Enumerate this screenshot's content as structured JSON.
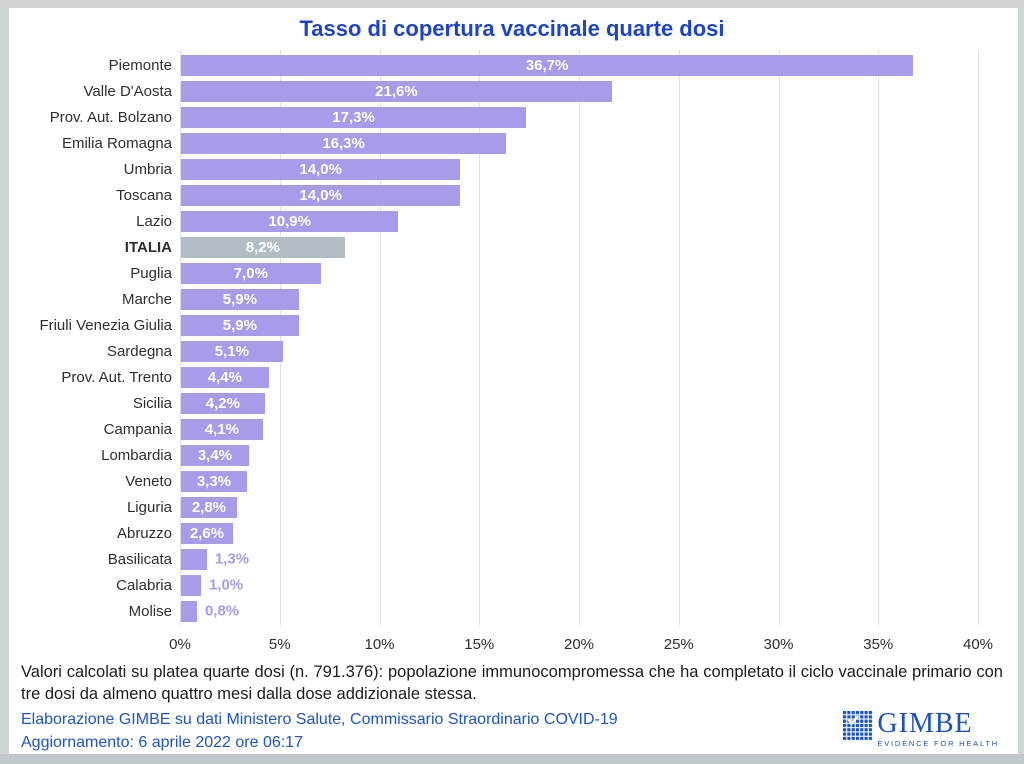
{
  "title": "Tasso di copertura vaccinale quarte dosi",
  "chart_data": {
    "type": "bar",
    "orientation": "horizontal",
    "title": "Tasso di copertura vaccinale quarte dosi",
    "xlabel": "",
    "ylabel": "",
    "xlim": [
      0,
      40
    ],
    "x_ticks": [
      "0%",
      "5%",
      "10%",
      "15%",
      "20%",
      "25%",
      "30%",
      "35%",
      "40%"
    ],
    "grid": "vertical-only",
    "legend": "none",
    "bar_color": "#a79bea",
    "highlight_color": "#b4bcc3",
    "value_label_inside_color": "#ffffff",
    "value_label_outside_color": "#a79bea",
    "items": [
      {
        "label": "Piemonte",
        "value": 36.7,
        "display": "36,7%"
      },
      {
        "label": "Valle D'Aosta",
        "value": 21.6,
        "display": "21,6%"
      },
      {
        "label": "Prov. Aut. Bolzano",
        "value": 17.3,
        "display": "17,3%"
      },
      {
        "label": "Emilia Romagna",
        "value": 16.3,
        "display": "16,3%"
      },
      {
        "label": "Umbria",
        "value": 14.0,
        "display": "14,0%"
      },
      {
        "label": "Toscana",
        "value": 14.0,
        "display": "14,0%"
      },
      {
        "label": "Lazio",
        "value": 10.9,
        "display": "10,9%"
      },
      {
        "label": "ITALIA",
        "value": 8.2,
        "display": "8,2%",
        "highlight": true
      },
      {
        "label": "Puglia",
        "value": 7.0,
        "display": "7,0%"
      },
      {
        "label": "Marche",
        "value": 5.9,
        "display": "5,9%"
      },
      {
        "label": "Friuli Venezia Giulia",
        "value": 5.9,
        "display": "5,9%"
      },
      {
        "label": "Sardegna",
        "value": 5.1,
        "display": "5,1%"
      },
      {
        "label": "Prov. Aut. Trento",
        "value": 4.4,
        "display": "4,4%"
      },
      {
        "label": "Sicilia",
        "value": 4.2,
        "display": "4,2%"
      },
      {
        "label": "Campania",
        "value": 4.1,
        "display": "4,1%"
      },
      {
        "label": "Lombardia",
        "value": 3.4,
        "display": "3,4%"
      },
      {
        "label": "Veneto",
        "value": 3.3,
        "display": "3,3%"
      },
      {
        "label": "Liguria",
        "value": 2.8,
        "display": "2,8%"
      },
      {
        "label": "Abruzzo",
        "value": 2.6,
        "display": "2,6%"
      },
      {
        "label": "Basilicata",
        "value": 1.3,
        "display": "1,3%",
        "label_outside": true
      },
      {
        "label": "Calabria",
        "value": 1.0,
        "display": "1,0%",
        "label_outside": true
      },
      {
        "label": "Molise",
        "value": 0.8,
        "display": "0,8%",
        "label_outside": true
      }
    ]
  },
  "footnote": "Valori calcolati su platea quarte dosi (n. 791.376): popolazione immunocompromessa che ha completato il ciclo vaccinale primario con tre dosi da almeno quattro mesi dalla dose addizionale stessa.",
  "source_line": "Elaborazione GIMBE su dati Ministero Salute, Commissario Straordinario COVID-19",
  "update_line": "Aggiornamento: 6 aprile 2022 ore 06:17",
  "logo": {
    "name": "GIMBE",
    "tagline": "EVIDENCE FOR HEALTH"
  },
  "colors": {
    "title": "#1d43cb",
    "source_text": "#1d55c4",
    "logo_blue": "#1a53bd",
    "gridline": "#dbe3e8",
    "frame": "#d2d5d6",
    "frame_bottom": "#c1c8cc",
    "label_text": "#2e2e2e"
  }
}
